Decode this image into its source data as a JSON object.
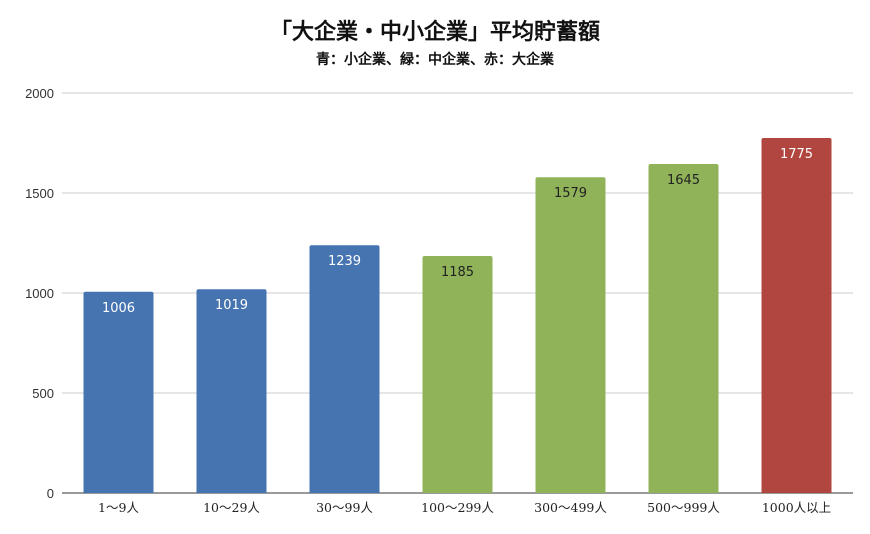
{
  "chart_data": {
    "type": "bar",
    "title": "「大企業・中小企業」平均貯蓄額",
    "subtitle": "青：小企業、緑：中企業、赤：大企業",
    "categories": [
      "1〜9人",
      "10〜29人",
      "30〜99人",
      "100〜299人",
      "300〜499人",
      "500〜999人",
      "1000人以上"
    ],
    "values": [
      1006,
      1019,
      1239,
      1185,
      1579,
      1645,
      1775
    ],
    "bar_colors": [
      "#4674b0",
      "#4674b0",
      "#4674b0",
      "#90b35a",
      "#90b35a",
      "#90b35a",
      "#b0463f"
    ],
    "label_colors": [
      "#ffffff",
      "#ffffff",
      "#ffffff",
      "#222222",
      "#222222",
      "#222222",
      "#ffffff"
    ],
    "ylim": [
      0,
      2000
    ],
    "yticks": [
      0,
      500,
      1000,
      1500,
      2000
    ],
    "grid": true,
    "xlabel": "",
    "ylabel": ""
  }
}
